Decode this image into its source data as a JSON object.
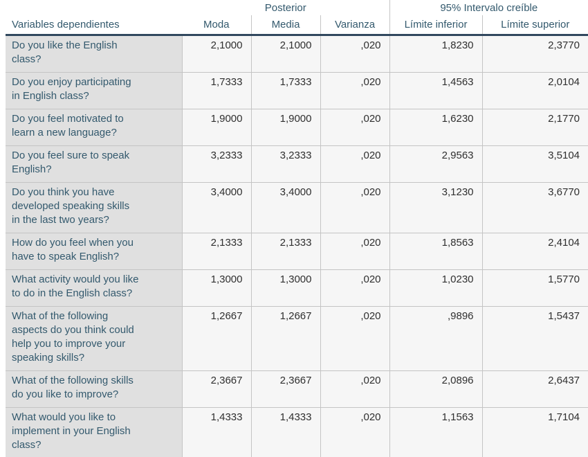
{
  "header": {
    "group_posterior": "Posterior",
    "group_interval": "95% Intervalo creíble",
    "col_variables": "Variables dependientes",
    "col_moda": "Moda",
    "col_media": "Media",
    "col_varianza": "Varianza",
    "col_limite_inferior": "Límite inferior",
    "col_limite_superior": "Límite superior"
  },
  "colors": {
    "header_and_label_text": "#33596d",
    "label_cell_bg": "#e0e0e0",
    "value_cell_bg": "#f6f6f6",
    "value_text": "#2f2f2f",
    "grid_line": "#c4c4c4",
    "heavy_line": "#31485e"
  },
  "table": {
    "rows": [
      {
        "label": "Do you like the English\nclass?",
        "moda": "2,1000",
        "media": "2,1000",
        "varianza": ",020",
        "limite_inferior": "1,8230",
        "limite_superior": "2,3770"
      },
      {
        "label": "Do you enjoy participating\nin English class?",
        "moda": "1,7333",
        "media": "1,7333",
        "varianza": ",020",
        "limite_inferior": "1,4563",
        "limite_superior": "2,0104"
      },
      {
        "label": "Do you feel motivated to\nlearn a new language?",
        "moda": "1,9000",
        "media": "1,9000",
        "varianza": ",020",
        "limite_inferior": "1,6230",
        "limite_superior": "2,1770"
      },
      {
        "label": "Do you feel sure to speak\nEnglish?",
        "moda": "3,2333",
        "media": "3,2333",
        "varianza": ",020",
        "limite_inferior": "2,9563",
        "limite_superior": "3,5104"
      },
      {
        "label": "Do you think you have\ndeveloped speaking skills\nin the last two years?",
        "moda": "3,4000",
        "media": "3,4000",
        "varianza": ",020",
        "limite_inferior": "3,1230",
        "limite_superior": "3,6770"
      },
      {
        "label": "How do you feel when you\nhave to speak English?",
        "moda": "2,1333",
        "media": "2,1333",
        "varianza": ",020",
        "limite_inferior": "1,8563",
        "limite_superior": "2,4104"
      },
      {
        "label": "What activity would you like\nto do in the English class?",
        "moda": "1,3000",
        "media": "1,3000",
        "varianza": ",020",
        "limite_inferior": "1,0230",
        "limite_superior": "1,5770"
      },
      {
        "label": "What of the following\naspects do you think could\nhelp you to improve your\nspeaking skills?",
        "moda": "1,2667",
        "media": "1,2667",
        "varianza": ",020",
        "limite_inferior": ",9896",
        "limite_superior": "1,5437"
      },
      {
        "label": "What of the following skills\ndo you like to improve?",
        "moda": "2,3667",
        "media": "2,3667",
        "varianza": ",020",
        "limite_inferior": "2,0896",
        "limite_superior": "2,6437"
      },
      {
        "label": "What would you like to\nimplement in your English\nclass?",
        "moda": "1,4333",
        "media": "1,4333",
        "varianza": ",020",
        "limite_inferior": "1,1563",
        "limite_superior": "1,7104"
      }
    ]
  }
}
